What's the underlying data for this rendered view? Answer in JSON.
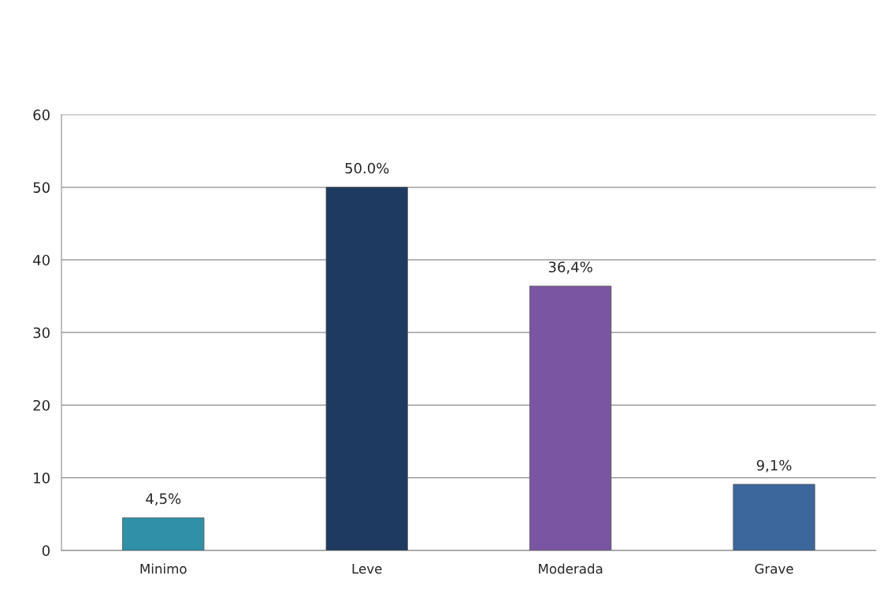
{
  "chart_data": {
    "type": "bar",
    "categories": [
      "Minimo",
      "Leve",
      "Moderada",
      "Grave"
    ],
    "values": [
      4.5,
      50.0,
      36.4,
      9.1
    ],
    "value_labels": [
      "4,5%",
      "50.0%",
      "36,4%",
      "9,1%"
    ],
    "colors": [
      "#2f90a8",
      "#1e3a60",
      "#7a55a2",
      "#3b679d"
    ],
    "ylim": [
      0,
      60
    ],
    "yticks": [
      0,
      10,
      20,
      30,
      40,
      50,
      60
    ],
    "grid": "y"
  }
}
